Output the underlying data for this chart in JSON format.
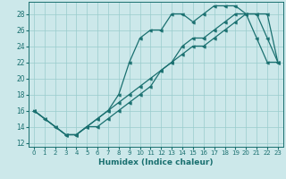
{
  "xlabel": "Humidex (Indice chaleur)",
  "background_color": "#cce8ea",
  "grid_color": "#99cccc",
  "line_color": "#1a7070",
  "xlim": [
    -0.5,
    23.5
  ],
  "ylim": [
    11.5,
    29.5
  ],
  "xticks": [
    0,
    1,
    2,
    3,
    4,
    5,
    6,
    7,
    8,
    9,
    10,
    11,
    12,
    13,
    14,
    15,
    16,
    17,
    18,
    19,
    20,
    21,
    22,
    23
  ],
  "yticks": [
    12,
    14,
    16,
    18,
    20,
    22,
    24,
    26,
    28
  ],
  "line1_x": [
    0,
    1,
    2,
    3,
    4,
    5,
    6,
    7,
    8,
    9,
    10,
    11,
    12,
    13,
    14,
    15,
    16,
    17,
    18,
    19,
    20,
    21,
    22,
    23
  ],
  "line1_y": [
    16,
    15,
    14,
    13,
    13,
    14,
    15,
    16,
    18,
    22,
    25,
    26,
    26,
    28,
    28,
    27,
    28,
    29,
    29,
    29,
    28,
    25,
    22,
    22
  ],
  "line2_x": [
    0,
    1,
    2,
    3,
    4,
    5,
    6,
    7,
    8,
    9,
    10,
    11,
    12,
    13,
    14,
    15,
    16,
    17,
    18,
    19,
    20,
    21,
    22,
    23
  ],
  "line2_y": [
    16,
    15,
    14,
    13,
    13,
    14,
    14,
    15,
    16,
    17,
    18,
    19,
    21,
    22,
    24,
    25,
    25,
    26,
    27,
    28,
    28,
    28,
    25,
    22
  ],
  "line3_x": [
    0,
    3,
    4,
    5,
    6,
    7,
    8,
    9,
    10,
    11,
    12,
    13,
    14,
    15,
    16,
    17,
    18,
    19,
    20,
    21,
    22,
    23
  ],
  "line3_y": [
    16,
    13,
    13,
    14,
    15,
    16,
    17,
    18,
    19,
    20,
    21,
    22,
    23,
    24,
    24,
    25,
    26,
    27,
    28,
    28,
    28,
    22
  ]
}
